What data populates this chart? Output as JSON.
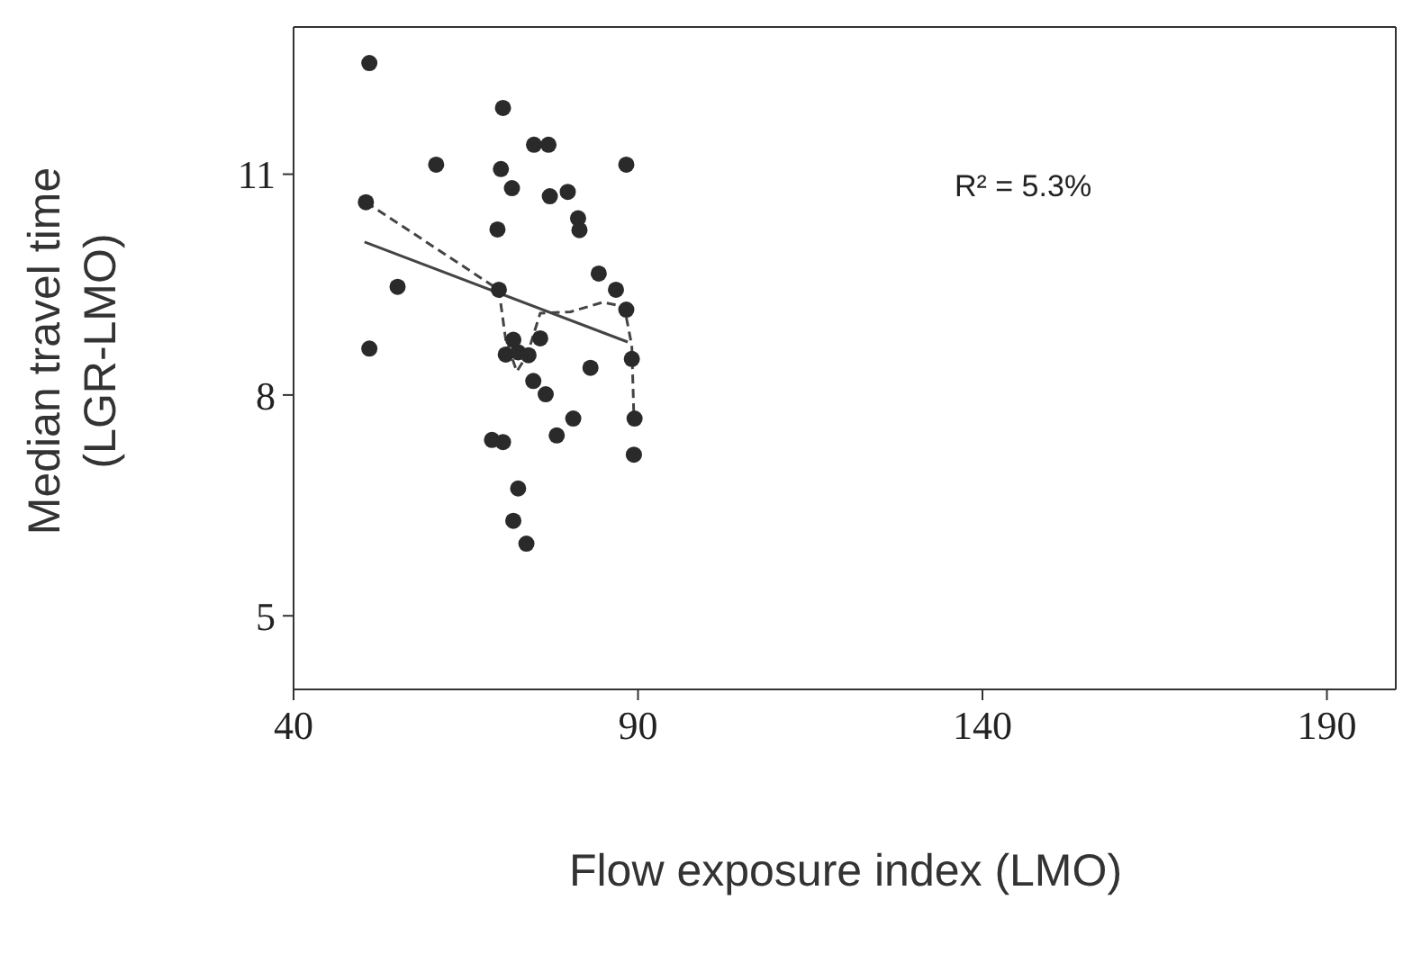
{
  "chart_data": {
    "type": "scatter",
    "xlabel": "Flow exposure index (LMO)",
    "ylabel": "Median travel time\n(LGR-LMO)",
    "annotations": [
      "R² = 5.3%"
    ],
    "xlim": [
      40,
      200
    ],
    "xticks": [
      40,
      90,
      140,
      190
    ],
    "ylim": [
      4,
      13
    ],
    "yticks": [
      5,
      8,
      11
    ],
    "grid": false,
    "legend": false,
    "series": [
      {
        "marker": "circle",
        "color": "#2a2a2a",
        "x": [
          51.0,
          70.4,
          74.9,
          77.0,
          60.7,
          70.1,
          88.3,
          71.7,
          77.2,
          79.8,
          81.3,
          81.5,
          50.5,
          69.6,
          55.1,
          69.8,
          84.3,
          86.8,
          88.3,
          75.8,
          71.9,
          70.8,
          72.6,
          74.1,
          89.1,
          51.0,
          83.1,
          74.8,
          76.6,
          80.6,
          78.2,
          89.5,
          89.4,
          68.8,
          70.4,
          72.6,
          71.9,
          73.8
        ],
        "values": [
          12.51,
          11.9,
          11.4,
          11.4,
          11.13,
          11.07,
          11.13,
          10.81,
          10.7,
          10.76,
          10.4,
          10.24,
          10.62,
          10.25,
          9.47,
          9.43,
          9.65,
          9.43,
          9.16,
          8.77,
          8.75,
          8.55,
          8.58,
          8.54,
          8.49,
          8.63,
          8.37,
          8.19,
          8.01,
          7.68,
          7.45,
          7.68,
          7.19,
          7.39,
          7.36,
          6.73,
          6.29,
          5.98
        ]
      },
      {
        "type": "line",
        "color": "#444444",
        "line_style": "solid",
        "x": [
          50.3,
          88.5
        ],
        "values": [
          10.08,
          8.72
        ]
      },
      {
        "type": "line",
        "color": "#444444",
        "line_style": "dashed",
        "x": [
          50.5,
          69.8,
          70.8,
          72.4,
          73.9,
          75.8,
          80.2,
          84.9,
          88.0,
          89.1,
          89.4
        ],
        "values": [
          10.62,
          9.43,
          8.75,
          8.32,
          8.54,
          9.11,
          9.13,
          9.26,
          9.2,
          8.67,
          7.7
        ]
      }
    ]
  }
}
